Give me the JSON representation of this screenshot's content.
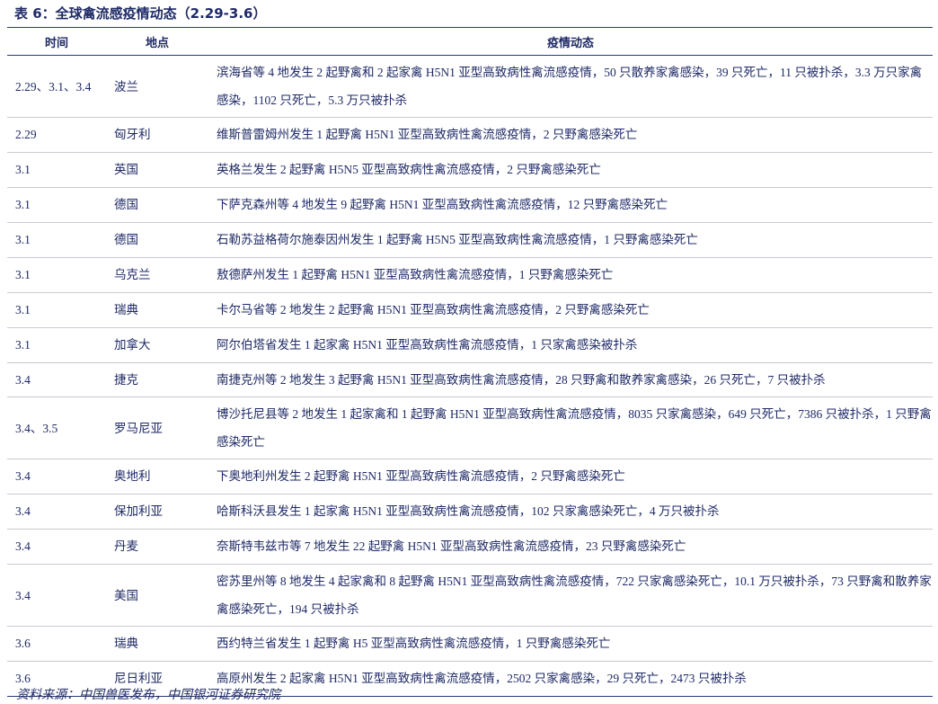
{
  "title": "表 6：全球禽流感疫情动态（2.29-3.6）",
  "table": {
    "header": [
      "时间",
      "地点",
      "疫情动态"
    ],
    "rows": [
      [
        "2.29、3.1、3.4",
        "波兰",
        "滨海省等 4 地发生 2 起野禽和 2 起家禽 H5N1 亚型高致病性禽流感疫情，50 只散养家禽感染，39 只死亡，11 只被扑杀，3.3 万只家禽感染，1102 只死亡，5.3 万只被扑杀"
      ],
      [
        "2.29",
        "匈牙利",
        "维斯普雷姆州发生 1 起野禽 H5N1 亚型高致病性禽流感疫情，2 只野禽感染死亡"
      ],
      [
        "3.1",
        "英国",
        "英格兰发生 2 起野禽 H5N5 亚型高致病性禽流感疫情，2 只野禽感染死亡"
      ],
      [
        "3.1",
        "德国",
        "下萨克森州等 4 地发生 9 起野禽 H5N1 亚型高致病性禽流感疫情，12 只野禽感染死亡"
      ],
      [
        "3.1",
        "德国",
        "石勒苏益格荷尔施泰因州发生 1 起野禽 H5N5 亚型高致病性禽流感疫情，1 只野禽感染死亡"
      ],
      [
        "3.1",
        "乌克兰",
        "敖德萨州发生 1 起野禽 H5N1 亚型高致病性禽流感疫情，1 只野禽感染死亡"
      ],
      [
        "3.1",
        "瑞典",
        "卡尔马省等 2 地发生 2 起野禽 H5N1 亚型高致病性禽流感疫情，2 只野禽感染死亡"
      ],
      [
        "3.1",
        "加拿大",
        "阿尔伯塔省发生 1 起家禽 H5N1 亚型高致病性禽流感疫情，1 只家禽感染被扑杀"
      ],
      [
        "3.4",
        "捷克",
        "南捷克州等 2 地发生 3 起野禽 H5N1 亚型高致病性禽流感疫情，28 只野禽和散养家禽感染，26 只死亡，7 只被扑杀"
      ],
      [
        "3.4、3.5",
        "罗马尼亚",
        "博沙托尼县等 2 地发生 1 起家禽和 1 起野禽 H5N1 亚型高致病性禽流感疫情，8035 只家禽感染，649 只死亡，7386 只被扑杀，1 只野禽感染死亡"
      ],
      [
        "3.4",
        "奥地利",
        "下奥地利州发生 2 起野禽 H5N1 亚型高致病性禽流感疫情，2 只野禽感染死亡"
      ],
      [
        "3.4",
        "保加利亚",
        "哈斯科沃县发生 1 起家禽 H5N1 亚型高致病性禽流感疫情，102 只家禽感染死亡，4 万只被扑杀"
      ],
      [
        "3.4",
        "丹麦",
        "奈斯特韦兹市等 7 地发生 22 起野禽 H5N1 亚型高致病性禽流感疫情，23 只野禽感染死亡"
      ],
      [
        "3.4",
        "美国",
        "密苏里州等 8 地发生 4 起家禽和 8 起野禽 H5N1 亚型高致病性禽流感疫情，722 只家禽感染死亡，10.1 万只被扑杀，73 只野禽和散养家禽感染死亡，194 只被扑杀"
      ],
      [
        "3.6",
        "瑞典",
        "西约特兰省发生 1 起野禽 H5 亚型高致病性禽流感疫情，1 只野禽感染死亡"
      ],
      [
        "3.6",
        "尼日利亚",
        "高原州发生 2 起家禽 H5N1 亚型高致病性禽流感疫情，2502 只家禽感染，29 只死亡，2473 只被扑杀"
      ]
    ]
  },
  "source": "资料来源：中国兽医发布，中国银河证券研究院"
}
